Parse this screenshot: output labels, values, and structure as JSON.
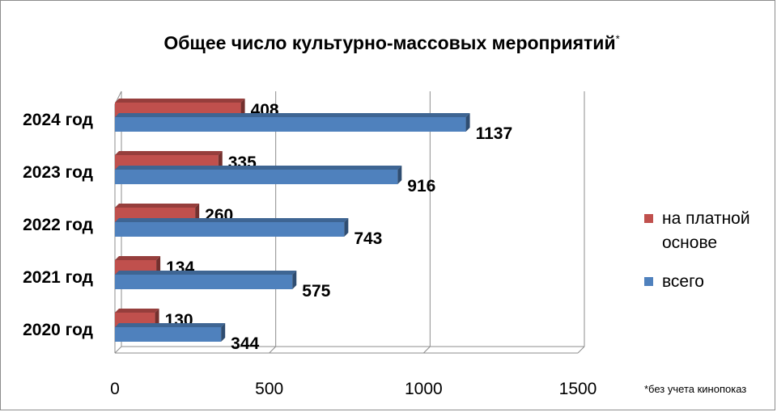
{
  "chart_data": {
    "type": "bar",
    "orientation": "horizontal",
    "title": "Общее число культурно-массовых мероприятий",
    "title_mark": "*",
    "footnote": "*без учета кинопоказ",
    "categories": [
      "2024 год",
      "2023 год",
      "2022 год",
      "2021 год",
      "2020 год"
    ],
    "series": [
      {
        "name": "на платной основе",
        "color": "#c0504d",
        "values": [
          408,
          335,
          260,
          134,
          130
        ]
      },
      {
        "name": "всего",
        "color": "#4f81bd",
        "values": [
          1137,
          916,
          743,
          575,
          344
        ]
      }
    ],
    "xlim": [
      0,
      1500
    ],
    "xticks": [
      "0",
      "500",
      "1000",
      "1500"
    ],
    "grid": true,
    "legend_position": "right"
  }
}
